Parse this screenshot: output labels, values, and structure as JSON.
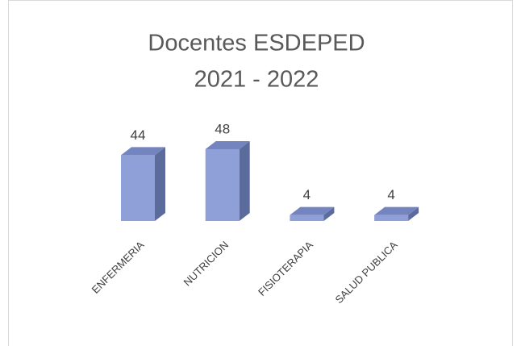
{
  "chart_data": {
    "type": "bar3d",
    "title": [
      "Docentes ESDEPED",
      "2021 - 2022"
    ],
    "categories": [
      "ENFERMERIA",
      "NUTRICION",
      "FISIOTERAPIA",
      "SALUD PUBLICA"
    ],
    "values": [
      44,
      48,
      4,
      4
    ],
    "color": "#8fa0d8"
  }
}
